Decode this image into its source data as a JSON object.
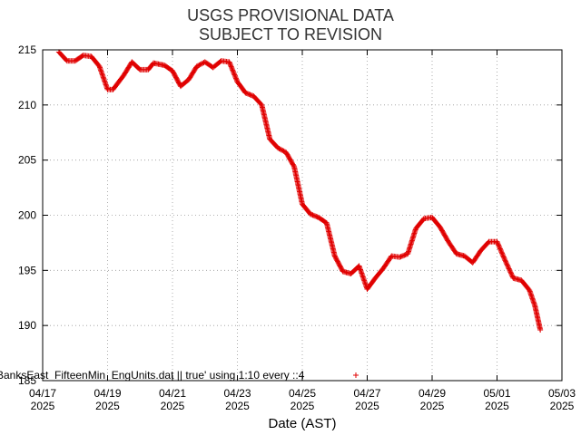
{
  "chart_data": {
    "type": "scatter",
    "title": [
      "USGS PROVISIONAL DATA",
      "SUBJECT TO REVISION"
    ],
    "xlabel": "Date (AST)",
    "ylabel": "",
    "xlim": [
      "2025-04-17",
      "2025-05-03"
    ],
    "ylim": [
      185,
      215
    ],
    "yticks": [
      185,
      190,
      195,
      200,
      205,
      210,
      215
    ],
    "xticks": [
      {
        "date": "2025-04-17",
        "label": "04/17",
        "year": "2025"
      },
      {
        "date": "2025-04-19",
        "label": "04/19",
        "year": "2025"
      },
      {
        "date": "2025-04-21",
        "label": "04/21",
        "year": "2025"
      },
      {
        "date": "2025-04-23",
        "label": "04/23",
        "year": "2025"
      },
      {
        "date": "2025-04-25",
        "label": "04/25",
        "year": "2025"
      },
      {
        "date": "2025-04-27",
        "label": "04/27",
        "year": "2025"
      },
      {
        "date": "2025-04-29",
        "label": "04/29",
        "year": "2025"
      },
      {
        "date": "2025-05-01",
        "label": "05/01",
        "year": "2025"
      },
      {
        "date": "2025-05-03",
        "label": "05/03",
        "year": "2025"
      }
    ],
    "grid": true,
    "legend": {
      "label": "BanksEast_FifteenMin_EngUnits.dat || true' using 1:10 every ::4",
      "placement": "bottom-center"
    },
    "series": [
      {
        "name": "BanksEast_FifteenMin_EngUnits.dat || true' using 1:10 every ::4",
        "color": "#e00000",
        "marker": "plus",
        "points": [
          [
            "2025-04-17T12:00",
            214.8
          ],
          [
            "2025-04-17T18:00",
            214.0
          ],
          [
            "2025-04-18T00:00",
            214.0
          ],
          [
            "2025-04-18T06:00",
            214.5
          ],
          [
            "2025-04-18T12:00",
            214.4
          ],
          [
            "2025-04-18T18:00",
            213.5
          ],
          [
            "2025-04-19T00:00",
            211.4
          ],
          [
            "2025-04-19T04:00",
            211.4
          ],
          [
            "2025-04-19T12:00",
            212.7
          ],
          [
            "2025-04-19T18:00",
            213.9
          ],
          [
            "2025-04-20T00:00",
            213.2
          ],
          [
            "2025-04-20T06:00",
            213.2
          ],
          [
            "2025-04-20T10:00",
            213.8
          ],
          [
            "2025-04-20T18:00",
            213.6
          ],
          [
            "2025-04-21T00:00",
            213.1
          ],
          [
            "2025-04-21T06:00",
            211.7
          ],
          [
            "2025-04-21T12:00",
            212.3
          ],
          [
            "2025-04-21T18:00",
            213.5
          ],
          [
            "2025-04-22T00:00",
            213.9
          ],
          [
            "2025-04-22T06:00",
            213.4
          ],
          [
            "2025-04-22T12:00",
            214.0
          ],
          [
            "2025-04-22T18:00",
            213.9
          ],
          [
            "2025-04-23T00:00",
            212.1
          ],
          [
            "2025-04-23T06:00",
            211.1
          ],
          [
            "2025-04-23T12:00",
            210.8
          ],
          [
            "2025-04-23T18:00",
            210.0
          ],
          [
            "2025-04-24T00:00",
            206.9
          ],
          [
            "2025-04-24T06:00",
            206.1
          ],
          [
            "2025-04-24T12:00",
            205.7
          ],
          [
            "2025-04-24T18:00",
            204.4
          ],
          [
            "2025-04-25T00:00",
            201.0
          ],
          [
            "2025-04-25T06:00",
            200.1
          ],
          [
            "2025-04-25T12:00",
            199.8
          ],
          [
            "2025-04-25T18:00",
            199.3
          ],
          [
            "2025-04-26T00:00",
            196.3
          ],
          [
            "2025-04-26T06:00",
            194.9
          ],
          [
            "2025-04-26T12:00",
            194.7
          ],
          [
            "2025-04-26T18:00",
            195.4
          ],
          [
            "2025-04-27T00:00",
            193.3
          ],
          [
            "2025-04-27T06:00",
            194.3
          ],
          [
            "2025-04-27T12:00",
            195.2
          ],
          [
            "2025-04-27T18:00",
            196.3
          ],
          [
            "2025-04-28T00:00",
            196.2
          ],
          [
            "2025-04-28T06:00",
            196.5
          ],
          [
            "2025-04-28T12:00",
            198.8
          ],
          [
            "2025-04-28T18:00",
            199.7
          ],
          [
            "2025-04-29T00:00",
            199.8
          ],
          [
            "2025-04-29T06:00",
            198.9
          ],
          [
            "2025-04-29T12:00",
            197.6
          ],
          [
            "2025-04-29T18:00",
            196.5
          ],
          [
            "2025-04-30T00:00",
            196.3
          ],
          [
            "2025-04-30T06:00",
            195.7
          ],
          [
            "2025-04-30T12:00",
            196.8
          ],
          [
            "2025-04-30T18:00",
            197.6
          ],
          [
            "2025-05-01T00:00",
            197.6
          ],
          [
            "2025-05-01T06:00",
            195.9
          ],
          [
            "2025-05-01T12:00",
            194.3
          ],
          [
            "2025-05-01T18:00",
            194.1
          ],
          [
            "2025-05-02T00:00",
            193.2
          ],
          [
            "2025-05-02T04:00",
            191.8
          ],
          [
            "2025-05-02T08:00",
            189.6
          ]
        ]
      }
    ]
  }
}
